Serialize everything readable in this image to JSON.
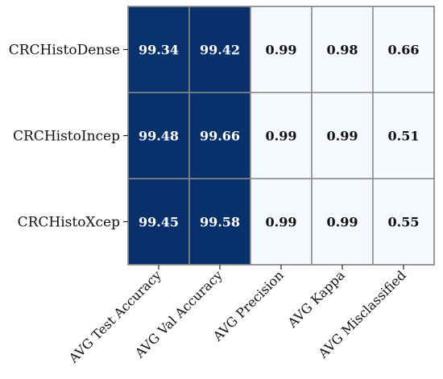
{
  "chart_data": {
    "type": "heatmap",
    "rows": [
      "CRCHistoDense",
      "CRCHistoIncep",
      "CRCHistoXcep"
    ],
    "columns": [
      "AVG Test Accuracy",
      "AVG Val Accuracy",
      "AVG Precision",
      "AVG Kappa",
      "AVG Misclassified"
    ],
    "values": [
      [
        99.34,
        99.42,
        0.99,
        0.98,
        0.66
      ],
      [
        99.48,
        99.66,
        0.99,
        0.99,
        0.51
      ],
      [
        99.45,
        99.58,
        0.99,
        0.99,
        0.55
      ]
    ],
    "value_labels": [
      [
        "99.34",
        "99.42",
        "0.99",
        "0.98",
        "0.66"
      ],
      [
        "99.48",
        "99.66",
        "0.99",
        "0.99",
        "0.51"
      ],
      [
        "99.45",
        "99.58",
        "0.99",
        "0.99",
        "0.55"
      ]
    ],
    "colormap": {
      "low": "#f6f9fe",
      "high": "#08306b"
    },
    "grid": true,
    "legend": "none"
  }
}
